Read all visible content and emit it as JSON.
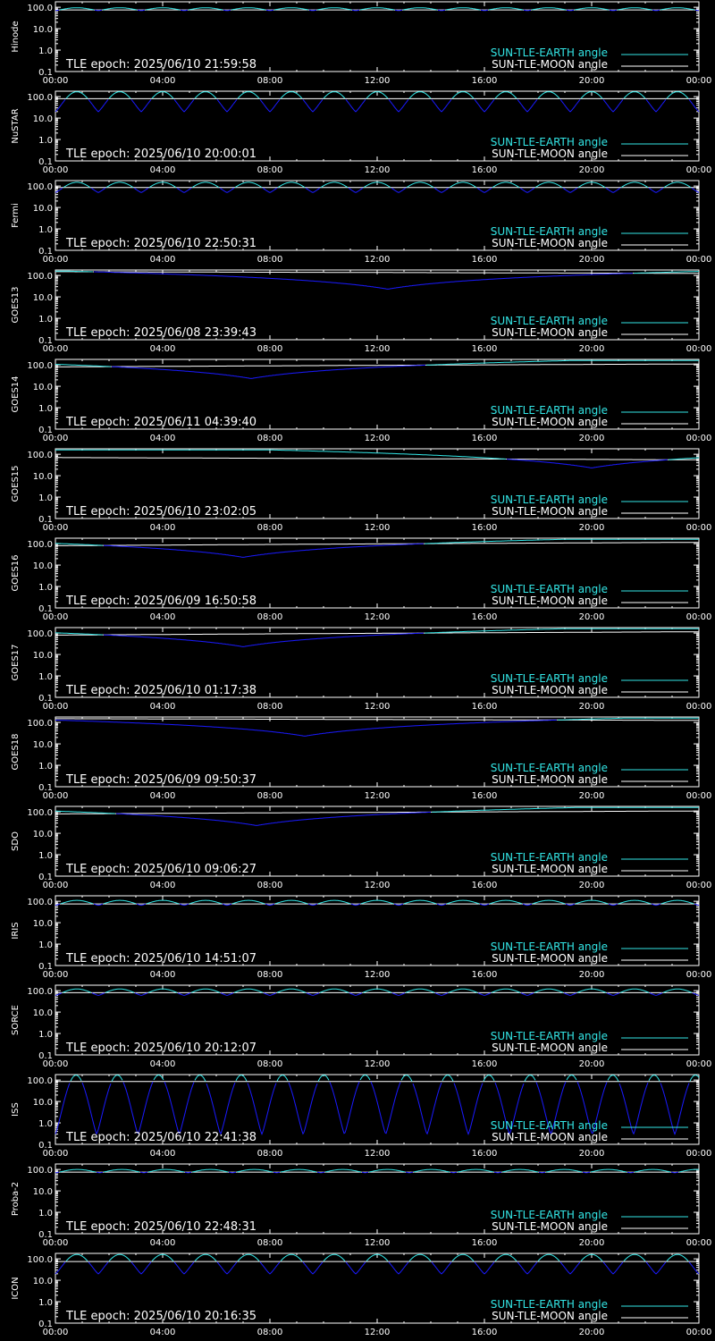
{
  "meta": {
    "time_ticks": [
      "00:00",
      "04:00",
      "08:00",
      "12:00",
      "16:00",
      "20:00",
      "00:00"
    ],
    "y_ticks": [
      "100.0",
      "10.0",
      "1.0",
      "0.1"
    ],
    "legend_earth": "SUN-TLE-EARTH angle",
    "legend_moon": "SUN-TLE-MOON angle",
    "colors": {
      "earth": "#33e6e6",
      "moon": "#ffffff",
      "dip": "#1a1aff",
      "axes": "#ffffff",
      "bg": "#000000"
    }
  },
  "chart_data": [
    {
      "type": "line",
      "satellite": "Hinode",
      "tle_epoch": "TLE epoch: 2025/06/10 21:59:58",
      "ylim": [
        0.1,
        180
      ],
      "log_y": true,
      "x_unit": "hours",
      "x_range": [
        0,
        24
      ],
      "series": [
        {
          "name": "SUN-TLE-EARTH angle",
          "model": "orbit",
          "period_h": 1.6,
          "max_deg": 95,
          "min_deg": 70
        },
        {
          "name": "SUN-TLE-MOON angle",
          "model": "flat",
          "value_deg": 75
        }
      ]
    },
    {
      "type": "line",
      "satellite": "NuSTAR",
      "tle_epoch": "TLE epoch: 2025/06/10 20:00:01",
      "ylim": [
        0.1,
        180
      ],
      "log_y": true,
      "x_unit": "hours",
      "x_range": [
        0,
        24
      ],
      "series": [
        {
          "name": "SUN-TLE-EARTH angle",
          "model": "orbit",
          "period_h": 1.6,
          "max_deg": 170,
          "min_deg": 20
        },
        {
          "name": "SUN-TLE-MOON angle",
          "model": "flat",
          "value_deg": 80
        }
      ]
    },
    {
      "type": "line",
      "satellite": "Fermi",
      "tle_epoch": "TLE epoch: 2025/06/10 22:50:31",
      "ylim": [
        0.1,
        180
      ],
      "log_y": true,
      "x_unit": "hours",
      "x_range": [
        0,
        24
      ],
      "series": [
        {
          "name": "SUN-TLE-EARTH angle",
          "model": "orbit",
          "period_h": 1.6,
          "max_deg": 150,
          "min_deg": 50
        },
        {
          "name": "SUN-TLE-MOON angle",
          "model": "flat",
          "value_deg": 85
        }
      ]
    },
    {
      "type": "line",
      "satellite": "GOES13",
      "tle_epoch": "TLE epoch: 2025/06/08 23:39:43",
      "ylim": [
        0.1,
        180
      ],
      "log_y": true,
      "x_unit": "hours",
      "x_range": [
        0,
        24
      ],
      "series": [
        {
          "name": "SUN-TLE-EARTH angle",
          "model": "geo",
          "min_hour": 12.4,
          "min_deg": 23,
          "max_deg": 160
        },
        {
          "name": "SUN-TLE-MOON angle",
          "model": "linear",
          "start_deg": 150,
          "end_deg": 125
        }
      ]
    },
    {
      "type": "line",
      "satellite": "GOES14",
      "tle_epoch": "TLE epoch: 2025/06/11 04:39:40",
      "ylim": [
        0.1,
        180
      ],
      "log_y": true,
      "x_unit": "hours",
      "x_range": [
        0,
        24
      ],
      "series": [
        {
          "name": "SUN-TLE-EARTH angle",
          "model": "geo",
          "min_hour": 7.3,
          "min_deg": 23,
          "max_deg": 160
        },
        {
          "name": "SUN-TLE-MOON angle",
          "model": "linear",
          "start_deg": 80,
          "end_deg": 110
        }
      ]
    },
    {
      "type": "line",
      "satellite": "GOES15",
      "tle_epoch": "TLE epoch: 2025/06/10 23:02:05",
      "ylim": [
        0.1,
        180
      ],
      "log_y": true,
      "x_unit": "hours",
      "x_range": [
        0,
        24
      ],
      "series": [
        {
          "name": "SUN-TLE-EARTH angle",
          "model": "geo",
          "min_hour": 20.0,
          "min_deg": 23,
          "max_deg": 160
        },
        {
          "name": "SUN-TLE-MOON angle",
          "model": "linear",
          "start_deg": 70,
          "end_deg": 55
        }
      ]
    },
    {
      "type": "line",
      "satellite": "GOES16",
      "tle_epoch": "TLE epoch: 2025/06/09 16:50:58",
      "ylim": [
        0.1,
        180
      ],
      "log_y": true,
      "x_unit": "hours",
      "x_range": [
        0,
        24
      ],
      "series": [
        {
          "name": "SUN-TLE-EARTH angle",
          "model": "geo",
          "min_hour": 7.0,
          "min_deg": 23,
          "max_deg": 160
        },
        {
          "name": "SUN-TLE-MOON angle",
          "model": "linear",
          "start_deg": 80,
          "end_deg": 115
        }
      ]
    },
    {
      "type": "line",
      "satellite": "GOES17",
      "tle_epoch": "TLE epoch: 2025/06/10 01:17:38",
      "ylim": [
        0.1,
        180
      ],
      "log_y": true,
      "x_unit": "hours",
      "x_range": [
        0,
        24
      ],
      "series": [
        {
          "name": "SUN-TLE-EARTH angle",
          "model": "geo",
          "min_hour": 7.0,
          "min_deg": 23,
          "max_deg": 160
        },
        {
          "name": "SUN-TLE-MOON angle",
          "model": "linear",
          "start_deg": 80,
          "end_deg": 115
        }
      ]
    },
    {
      "type": "line",
      "satellite": "GOES18",
      "tle_epoch": "TLE epoch: 2025/06/09 09:50:37",
      "ylim": [
        0.1,
        180
      ],
      "log_y": true,
      "x_unit": "hours",
      "x_range": [
        0,
        24
      ],
      "series": [
        {
          "name": "SUN-TLE-EARTH angle",
          "model": "geo",
          "min_hour": 9.3,
          "min_deg": 23,
          "max_deg": 160
        },
        {
          "name": "SUN-TLE-MOON angle",
          "model": "linear",
          "start_deg": 150,
          "end_deg": 125
        }
      ]
    },
    {
      "type": "line",
      "satellite": "SDO",
      "tle_epoch": "TLE epoch: 2025/06/10 09:06:27",
      "ylim": [
        0.1,
        180
      ],
      "log_y": true,
      "x_unit": "hours",
      "x_range": [
        0,
        24
      ],
      "series": [
        {
          "name": "SUN-TLE-EARTH angle",
          "model": "geo",
          "min_hour": 7.5,
          "min_deg": 23,
          "max_deg": 160
        },
        {
          "name": "SUN-TLE-MOON angle",
          "model": "linear",
          "start_deg": 80,
          "end_deg": 110
        }
      ]
    },
    {
      "type": "line",
      "satellite": "IRIS",
      "tle_epoch": "TLE epoch: 2025/06/10 14:51:07",
      "ylim": [
        0.1,
        180
      ],
      "log_y": true,
      "x_unit": "hours",
      "x_range": [
        0,
        24
      ],
      "series": [
        {
          "name": "SUN-TLE-EARTH angle",
          "model": "orbit",
          "period_h": 1.6,
          "max_deg": 110,
          "min_deg": 65
        },
        {
          "name": "SUN-TLE-MOON angle",
          "model": "flat",
          "value_deg": 75
        }
      ]
    },
    {
      "type": "line",
      "satellite": "SORCE",
      "tle_epoch": "TLE epoch: 2025/06/10 20:12:07",
      "ylim": [
        0.1,
        180
      ],
      "log_y": true,
      "x_unit": "hours",
      "x_range": [
        0,
        24
      ],
      "series": [
        {
          "name": "SUN-TLE-EARTH angle",
          "model": "orbit",
          "period_h": 1.6,
          "max_deg": 120,
          "min_deg": 60
        },
        {
          "name": "SUN-TLE-MOON angle",
          "model": "flat",
          "value_deg": 80
        }
      ]
    },
    {
      "type": "line",
      "satellite": "ISS",
      "tle_epoch": "TLE epoch: 2025/06/10 22:41:38",
      "ylim": [
        0.1,
        180
      ],
      "log_y": true,
      "x_unit": "hours",
      "x_range": [
        0,
        24
      ],
      "series": [
        {
          "name": "SUN-TLE-EARTH angle",
          "model": "orbit",
          "period_h": 1.54,
          "max_deg": 170,
          "min_deg": 0.3
        },
        {
          "name": "SUN-TLE-MOON angle",
          "model": "flat",
          "value_deg": 85
        }
      ]
    },
    {
      "type": "line",
      "satellite": "Proba-2",
      "tle_epoch": "TLE epoch: 2025/06/10 22:48:31",
      "ylim": [
        0.1,
        180
      ],
      "log_y": true,
      "x_unit": "hours",
      "x_range": [
        0,
        24
      ],
      "series": [
        {
          "name": "SUN-TLE-EARTH angle",
          "model": "orbit",
          "period_h": 1.65,
          "max_deg": 100,
          "min_deg": 70
        },
        {
          "name": "SUN-TLE-MOON angle",
          "model": "flat",
          "value_deg": 75
        }
      ]
    },
    {
      "type": "line",
      "satellite": "ICON",
      "tle_epoch": "TLE epoch: 2025/06/10 20:16:35",
      "ylim": [
        0.1,
        180
      ],
      "log_y": true,
      "x_unit": "hours",
      "x_range": [
        0,
        24
      ],
      "series": [
        {
          "name": "SUN-TLE-EARTH angle",
          "model": "orbit",
          "period_h": 1.6,
          "max_deg": 160,
          "min_deg": 20
        },
        {
          "name": "SUN-TLE-MOON angle",
          "model": "flat",
          "value_deg": 75
        }
      ]
    }
  ]
}
